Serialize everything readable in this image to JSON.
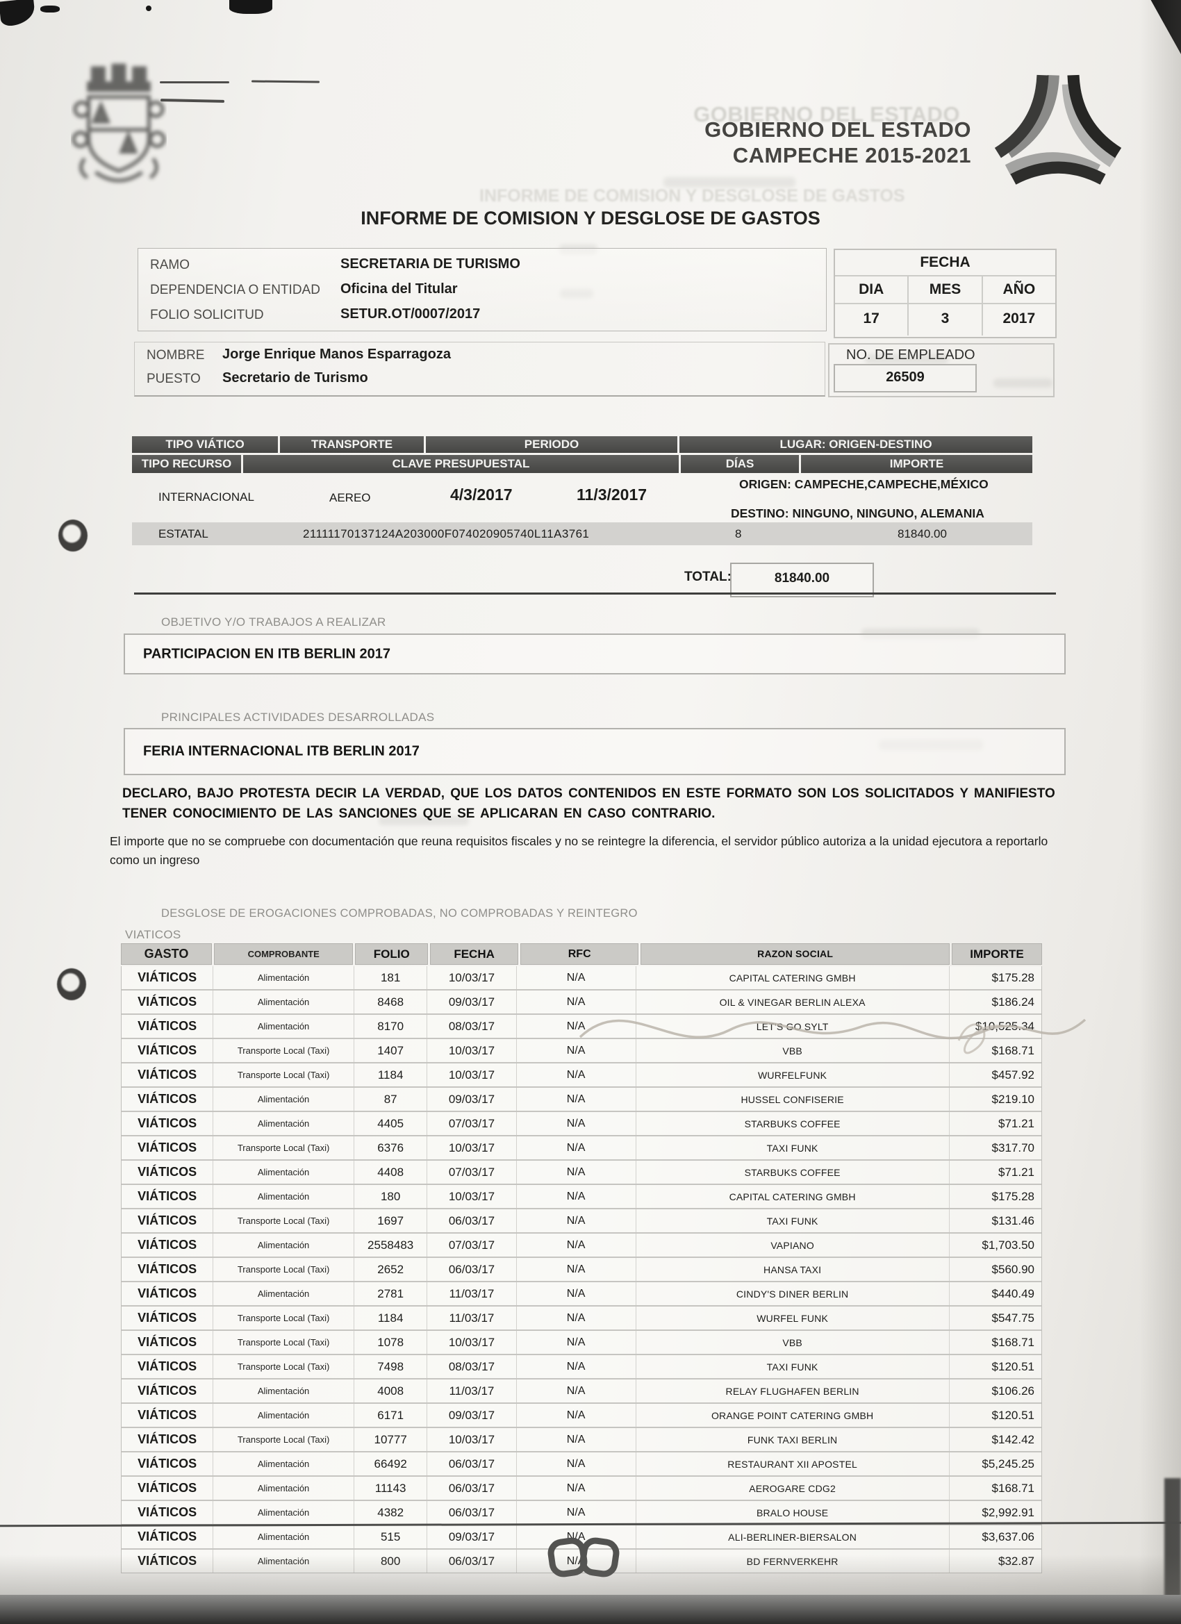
{
  "header": {
    "gov_line1": "GOBIERNO DEL ESTADO",
    "gov_line2": "CAMPECHE 2015-2021",
    "title": "INFORME DE COMISION Y DESGLOSE DE GASTOS"
  },
  "info": {
    "ramo_label": "RAMO",
    "ramo_value": "SECRETARIA DE TURISMO",
    "dependencia_label": "DEPENDENCIA O ENTIDAD",
    "dependencia_value": "Oficina del Titular",
    "folio_label": "FOLIO SOLICITUD",
    "folio_value": "SETUR.OT/0007/2017",
    "fecha": {
      "title": "FECHA",
      "dia_label": "DIA",
      "mes_label": "MES",
      "ano_label": "AÑO",
      "dia": "17",
      "mes": "3",
      "ano": "2017"
    },
    "nombre_label": "NOMBRE",
    "nombre_value": "Jorge Enrique Manos Esparragoza",
    "puesto_label": "PUESTO",
    "puesto_value": "Secretario de Turismo",
    "empleado_label": "NO. DE EMPLEADO",
    "empleado_value": "26509"
  },
  "viatico_table": {
    "h1": [
      "TIPO VIÁTICO",
      "TRANSPORTE",
      "PERIODO",
      "LUGAR: ORIGEN-DESTINO"
    ],
    "h2": [
      "TIPO RECURSO",
      "CLAVE PRESUPUESTAL",
      "DÍAS",
      "IMPORTE"
    ],
    "tipo_viatico": "INTERNACIONAL",
    "transporte": "AEREO",
    "periodo_inicio": "4/3/2017",
    "periodo_fin": "11/3/2017",
    "origen": "ORIGEN: CAMPECHE,CAMPECHE,MÉXICO",
    "destino": "DESTINO: NINGUNO, NINGUNO, ALEMANIA",
    "tipo_recurso": "ESTATAL",
    "clave": "21111170137124A203000F074020905740L11A3761",
    "dias": "8",
    "importe": "81840.00",
    "total_label": "TOTAL:",
    "total_value": "81840.00"
  },
  "objetivo": {
    "label": "OBJETIVO Y/O TRABAJOS A REALIZAR",
    "value": "PARTICIPACION EN ITB BERLIN 2017"
  },
  "actividades": {
    "label": "PRINCIPALES ACTIVIDADES DESARROLLADAS",
    "value": "FERIA INTERNACIONAL ITB BERLIN 2017"
  },
  "declaracion": {
    "p1": "DECLARO, BAJO PROTESTA DECIR LA VERDAD, QUE LOS DATOS CONTENIDOS EN ESTE FORMATO SON LOS SOLICITADOS Y MANIFIESTO TENER CONOCIMIENTO DE LAS SANCIONES QUE SE APLICARAN EN CASO CONTRARIO.",
    "p2": "El importe que no se compruebe con documentación que reuna requisitos fiscales y  no  se reintegre  la  diferencia, el  servidor  público autoriza a la unidad ejecutora a reportarlo como un ingreso"
  },
  "desglose": {
    "section_label": "DESGLOSE DE EROGACIONES COMPROBADAS, NO COMPROBADAS Y REINTEGRO",
    "group_label": "VIATICOS",
    "columns": [
      "GASTO",
      "COMPROBANTE",
      "FOLIO",
      "FECHA",
      "RFC",
      "RAZON SOCIAL",
      "IMPORTE"
    ],
    "rows": [
      [
        "VIÁTICOS",
        "Alimentación",
        "181",
        "10/03/17",
        "N/A",
        "CAPITAL CATERING GMBH",
        "$175.28"
      ],
      [
        "VIÁTICOS",
        "Alimentación",
        "8468",
        "09/03/17",
        "N/A",
        "OIL & VINEGAR BERLIN ALEXA",
        "$186.24"
      ],
      [
        "VIÁTICOS",
        "Alimentación",
        "8170",
        "08/03/17",
        "N/A",
        "LET'S GO SYLT",
        "$10,525.34"
      ],
      [
        "VIÁTICOS",
        "Transporte Local (Taxi)",
        "1407",
        "10/03/17",
        "N/A",
        "VBB",
        "$168.71"
      ],
      [
        "VIÁTICOS",
        "Transporte Local (Taxi)",
        "1184",
        "10/03/17",
        "N/A",
        "WURFELFUNK",
        "$457.92"
      ],
      [
        "VIÁTICOS",
        "Alimentación",
        "87",
        "09/03/17",
        "N/A",
        "HUSSEL CONFISERIE",
        "$219.10"
      ],
      [
        "VIÁTICOS",
        "Alimentación",
        "4405",
        "07/03/17",
        "N/A",
        "STARBUKS COFFEE",
        "$71.21"
      ],
      [
        "VIÁTICOS",
        "Transporte Local (Taxi)",
        "6376",
        "10/03/17",
        "N/A",
        "TAXI FUNK",
        "$317.70"
      ],
      [
        "VIÁTICOS",
        "Alimentación",
        "4408",
        "07/03/17",
        "N/A",
        "STARBUKS COFFEE",
        "$71.21"
      ],
      [
        "VIÁTICOS",
        "Alimentación",
        "180",
        "10/03/17",
        "N/A",
        "CAPITAL CATERING GMBH",
        "$175.28"
      ],
      [
        "VIÁTICOS",
        "Transporte Local (Taxi)",
        "1697",
        "06/03/17",
        "N/A",
        "TAXI FUNK",
        "$131.46"
      ],
      [
        "VIÁTICOS",
        "Alimentación",
        "2558483",
        "07/03/17",
        "N/A",
        "VAPIANO",
        "$1,703.50"
      ],
      [
        "VIÁTICOS",
        "Transporte Local (Taxi)",
        "2652",
        "06/03/17",
        "N/A",
        "HANSA TAXI",
        "$560.90"
      ],
      [
        "VIÁTICOS",
        "Alimentación",
        "2781",
        "11/03/17",
        "N/A",
        "CINDY'S DINER BERLIN",
        "$440.49"
      ],
      [
        "VIÁTICOS",
        "Transporte Local (Taxi)",
        "1184",
        "11/03/17",
        "N/A",
        "WURFEL FUNK",
        "$547.75"
      ],
      [
        "VIÁTICOS",
        "Transporte Local (Taxi)",
        "1078",
        "10/03/17",
        "N/A",
        "VBB",
        "$168.71"
      ],
      [
        "VIÁTICOS",
        "Transporte Local (Taxi)",
        "7498",
        "08/03/17",
        "N/A",
        "TAXI FUNK",
        "$120.51"
      ],
      [
        "VIÁTICOS",
        "Alimentación",
        "4008",
        "11/03/17",
        "N/A",
        "RELAY FLUGHAFEN BERLIN",
        "$106.26"
      ],
      [
        "VIÁTICOS",
        "Alimentación",
        "6171",
        "09/03/17",
        "N/A",
        "ORANGE POINT CATERING GMBH",
        "$120.51"
      ],
      [
        "VIÁTICOS",
        "Transporte Local (Taxi)",
        "10777",
        "10/03/17",
        "N/A",
        "FUNK TAXI BERLIN",
        "$142.42"
      ],
      [
        "VIÁTICOS",
        "Alimentación",
        "66492",
        "06/03/17",
        "N/A",
        "RESTAURANT XII APOSTEL",
        "$5,245.25"
      ],
      [
        "VIÁTICOS",
        "Alimentación",
        "11143",
        "06/03/17",
        "N/A",
        "AEROGARE CDG2",
        "$168.71"
      ],
      [
        "VIÁTICOS",
        "Alimentación",
        "4382",
        "06/03/17",
        "N/A",
        "BRALO HOUSE",
        "$2,992.91"
      ],
      [
        "VIÁTICOS",
        "Alimentación",
        "515",
        "09/03/17",
        "N/A",
        "ALI-BERLINER-BIERSALON",
        "$3,637.06"
      ],
      [
        "VIÁTICOS",
        "Alimentación",
        "800",
        "06/03/17",
        "N/A",
        "BD FERNVERKEHR",
        "$32.87"
      ]
    ]
  }
}
